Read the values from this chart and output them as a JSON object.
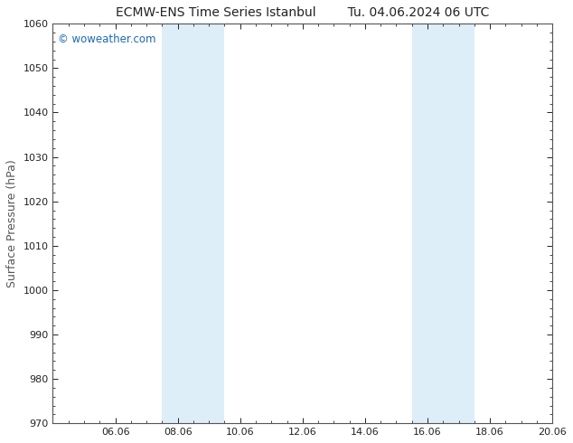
{
  "title_left": "ECMW-ENS Time Series Istanbul",
  "title_right": "Tu. 04.06.2024 06 UTC",
  "ylabel": "Surface Pressure (hPa)",
  "ylim": [
    970,
    1060
  ],
  "yticks": [
    970,
    980,
    990,
    1000,
    1010,
    1020,
    1030,
    1040,
    1050,
    1060
  ],
  "xtick_labels": [
    "06.06",
    "08.06",
    "10.06",
    "12.06",
    "14.06",
    "16.06",
    "18.06",
    "20.06"
  ],
  "xtick_positions": [
    2,
    4,
    6,
    8,
    10,
    12,
    14,
    16
  ],
  "xlim": [
    0,
    16
  ],
  "shade_bands": [
    {
      "x_start": 3.5,
      "x_end": 4.5
    },
    {
      "x_start": 4.5,
      "x_end": 5.5
    },
    {
      "x_start": 11.5,
      "x_end": 12.5
    },
    {
      "x_start": 12.5,
      "x_end": 13.5
    }
  ],
  "shade_color": "#ddeef8",
  "background_color": "#ffffff",
  "plot_bg_color": "#ffffff",
  "watermark_text": "© woweather.com",
  "watermark_color": "#1a6ab5",
  "title_color": "#222222",
  "axis_color": "#555555",
  "tick_color": "#222222",
  "figsize": [
    6.34,
    4.9
  ],
  "dpi": 100
}
